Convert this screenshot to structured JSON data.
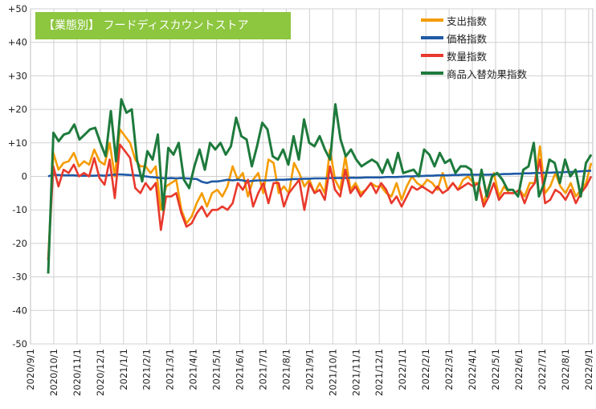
{
  "chart_data": {
    "type": "line",
    "title": "【業態別】 フードディスカウントストア",
    "xlabel": "",
    "ylabel": "",
    "ylim": [
      -50,
      50
    ],
    "yticks": [
      "+50",
      "+40",
      "+30",
      "+20",
      "+10",
      "0",
      "-10",
      "-20",
      "-30",
      "-40",
      "-50"
    ],
    "ytick_values": [
      50,
      40,
      30,
      20,
      10,
      0,
      -10,
      -20,
      -30,
      -40,
      -50
    ],
    "x_labels": [
      "2020/9/1",
      "2020/10/1",
      "2020/11/1",
      "2020/12/1",
      "2021/1/1",
      "2021/2/1",
      "2021/3/1",
      "2021/4/1",
      "2021/5/1",
      "2021/6/1",
      "2021/7/1",
      "2021/8/1",
      "2021/9/1",
      "2021/10/1",
      "2021/11/1",
      "2021/12/1",
      "2022/1/1",
      "2022/2/1",
      "2022/3/1",
      "2022/4/1",
      "2022/5/1",
      "2022/6/1",
      "2022/7/1",
      "2022/8/1",
      "2022/9/1"
    ],
    "grid": true,
    "legend_position": "top-right",
    "series": [
      {
        "name": "支出指数",
        "color": "#f59c00",
        "values": [
          -25,
          7,
          2,
          4,
          4.5,
          7,
          3,
          4.5,
          3.5,
          8,
          4.5,
          3.5,
          10,
          0,
          14,
          12,
          10,
          5,
          3,
          3,
          1,
          3,
          -10,
          -3,
          -2,
          -1,
          -10,
          -14,
          -12,
          -8,
          -5,
          -9,
          -5,
          -4,
          -6,
          -3,
          3,
          -1,
          1,
          -6,
          -1,
          1,
          -5,
          5,
          4,
          -5,
          -3,
          -5,
          4,
          1,
          -3,
          -1,
          -5,
          -2,
          -5,
          8,
          -1,
          -4,
          6,
          -4,
          -2,
          -5,
          -4,
          -2,
          -3,
          -3,
          -5,
          -6,
          -2,
          -7,
          -3,
          0,
          -2,
          -3,
          -1,
          -2,
          -4,
          1,
          -4,
          -2,
          -4,
          -1,
          0,
          -2,
          -2,
          -8,
          -3,
          1,
          -6,
          -3,
          -5,
          -5,
          -4,
          -6,
          -2,
          -2,
          9,
          -5,
          -3,
          1,
          -3,
          -5,
          -2,
          -6,
          -4,
          -2,
          4
        ]
      },
      {
        "name": "価格指数",
        "color": "#1f5aa6",
        "values": [
          0,
          0.5,
          0.4,
          0.3,
          0.3,
          0.3,
          0.2,
          0.2,
          0.2,
          0.2,
          0.3,
          0.2,
          0.4,
          0.5,
          0.6,
          0.5,
          0.4,
          0.3,
          0.2,
          0,
          -0.2,
          -0.3,
          -0.5,
          -0.6,
          -0.5,
          -0.6,
          -0.5,
          -0.6,
          -0.7,
          -0.8,
          -1.6,
          -2,
          -1.5,
          -1.5,
          -1.3,
          -1,
          -1.2,
          -1,
          -1.2,
          -1.5,
          -1.3,
          -1.2,
          -1.2,
          -1.2,
          -1.1,
          -1,
          -1,
          -0.9,
          -0.8,
          -0.8,
          -0.7,
          -0.7,
          -0.6,
          -0.6,
          -0.6,
          -0.5,
          -0.5,
          -0.5,
          -0.5,
          -0.4,
          -0.4,
          -0.4,
          -0.3,
          -0.3,
          -0.3,
          -0.3,
          -0.2,
          -0.2,
          -0.2,
          -0.1,
          0,
          0,
          0.1,
          0.1,
          0.2,
          0.2,
          0.3,
          0.3,
          0.3,
          0.4,
          0.4,
          0.5,
          0.5,
          0.5,
          0.5,
          0.5,
          0.5,
          0.6,
          0.6,
          0.7,
          0.7,
          0.8,
          0.8,
          0.9,
          0.9,
          1,
          1,
          1.1,
          1.1,
          1.2,
          1.2,
          1.3,
          1.3,
          1.4,
          1.5,
          1.6,
          1.7
        ]
      },
      {
        "name": "数量指数",
        "color": "#e8392c",
        "values": [
          -25,
          3,
          -3,
          2,
          1,
          3.5,
          0,
          1,
          0,
          5.5,
          -0.5,
          -2.5,
          5,
          -6.5,
          9.5,
          7.5,
          5.5,
          -3.5,
          -5,
          -2,
          -4,
          -2,
          -16,
          -6,
          -6,
          -5,
          -11,
          -15,
          -14,
          -11,
          -9,
          -12,
          -10,
          -10,
          -9,
          -10,
          -8,
          -2,
          -4,
          -1,
          -9,
          -5,
          -2,
          -8,
          -2,
          -2,
          -9,
          -5,
          -3,
          -1,
          -10,
          -2,
          -5,
          -4,
          -7,
          3,
          -4,
          -6,
          2,
          -5,
          -3,
          -6,
          -4,
          -2,
          -5,
          -2,
          -4,
          -8,
          -6,
          -9,
          -6,
          -3,
          -4,
          -3,
          -4,
          -5,
          -3,
          -5,
          -4,
          -2,
          -4,
          -3,
          -2,
          -3,
          -2,
          -9,
          -6,
          -2,
          -7,
          -5,
          -5,
          -5,
          -4,
          -8,
          -4,
          -2,
          5,
          -8,
          -7,
          -4,
          -5,
          -7,
          -4,
          -8,
          -5,
          -3,
          0
        ]
      },
      {
        "name": "商品入替効果指数",
        "color": "#1e7a3c",
        "values": [
          -29,
          13,
          10.5,
          12.5,
          13,
          15.5,
          11,
          12.5,
          14,
          14.5,
          10,
          6,
          19.5,
          4.5,
          23,
          19,
          20,
          5,
          -1.5,
          7.5,
          5,
          12.5,
          -10,
          8.5,
          6.5,
          10,
          -1,
          -3.5,
          3,
          8,
          2,
          10,
          8,
          10,
          6.5,
          9,
          17.5,
          12,
          11,
          3,
          9,
          16,
          14,
          6,
          5,
          8,
          3.5,
          12,
          5,
          17,
          10,
          9,
          12,
          8,
          5,
          21.5,
          11,
          6,
          8,
          5,
          3,
          4,
          5,
          4,
          1,
          5,
          1,
          7,
          1,
          1.5,
          2,
          0,
          8,
          6.5,
          3,
          7,
          4,
          5,
          1,
          3,
          3,
          2,
          -7,
          2,
          -6,
          0,
          1,
          -1,
          -4,
          -4,
          -6,
          2,
          3,
          10,
          -6,
          -2,
          5,
          4,
          -2,
          5,
          0,
          2,
          -6,
          4,
          6.5
        ]
      }
    ]
  }
}
